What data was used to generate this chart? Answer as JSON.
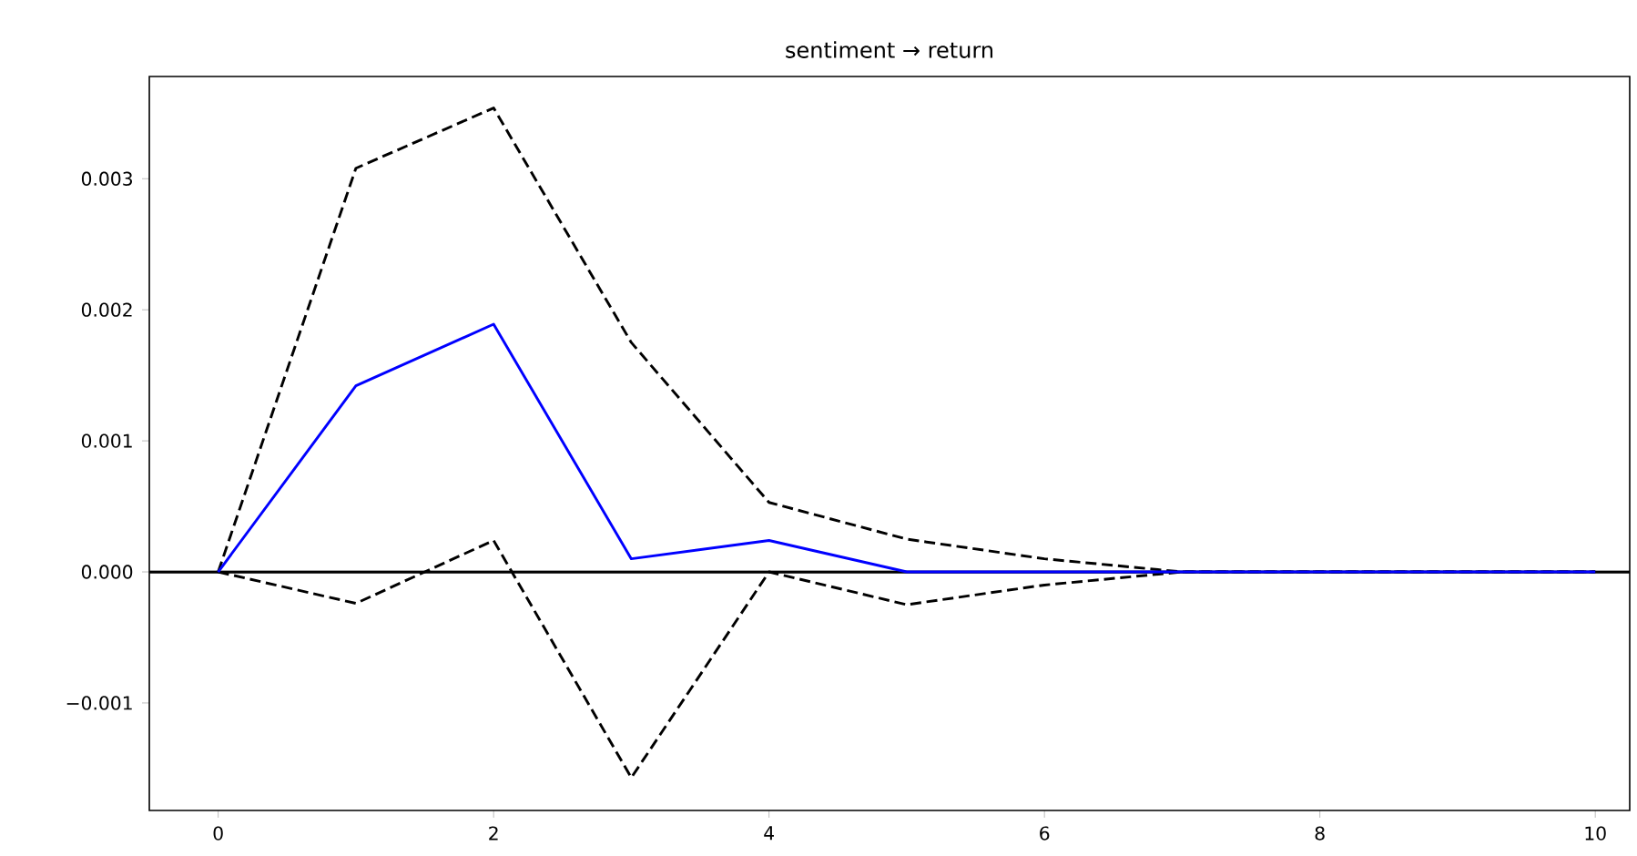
{
  "chart_data": {
    "type": "line",
    "title": "sentiment → return",
    "x": [
      0,
      1,
      2,
      3,
      4,
      5,
      6,
      7,
      8,
      9,
      10
    ],
    "series": [
      {
        "color": "#0000ff",
        "line_style": "solid",
        "values": [
          0,
          0.00142,
          0.00189,
          0.0001,
          0.00024,
          0,
          0,
          0,
          0,
          0,
          0
        ]
      },
      {
        "color": "#000000",
        "line_style": "dashed",
        "values": [
          0,
          0.00308,
          0.00354,
          0.00175,
          0.00053,
          0.00025,
          0.0001,
          0,
          0,
          0,
          0
        ]
      },
      {
        "color": "#000000",
        "line_style": "dashed",
        "values": [
          0,
          -0.00024,
          0.00024,
          -0.00157,
          0,
          -0.00025,
          -0.0001,
          0,
          0,
          0,
          0
        ]
      }
    ],
    "xlim": [
      -0.5,
      10.25
    ],
    "ylim": [
      -0.00182,
      0.00378
    ],
    "xticks": [
      0,
      2,
      4,
      6,
      8,
      10
    ],
    "yticks": [
      {
        "value": -0.001,
        "label": "−0.001"
      },
      {
        "value": 0,
        "label": "0.000"
      },
      {
        "value": 0.001,
        "label": "0.001"
      },
      {
        "value": 0.002,
        "label": "0.002"
      },
      {
        "value": 0.003,
        "label": "0.003"
      }
    ],
    "ref_lines": [
      {
        "axis": "y",
        "value": 0,
        "color": "#000000",
        "line_style": "solid"
      }
    ]
  }
}
